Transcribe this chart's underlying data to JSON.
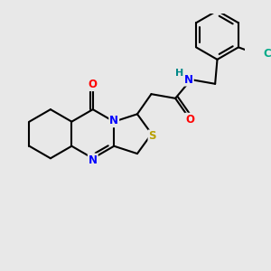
{
  "background_color": "#e8e8e8",
  "bond_color": "#000000",
  "atom_colors": {
    "N": "#0000ff",
    "O": "#ff0000",
    "S": "#b8a000",
    "Cl": "#00aa88",
    "H": "#008888",
    "C": "#000000"
  },
  "figsize": [
    3.0,
    3.0
  ],
  "dpi": 100,
  "lw": 1.5,
  "fontsize": 8.5
}
